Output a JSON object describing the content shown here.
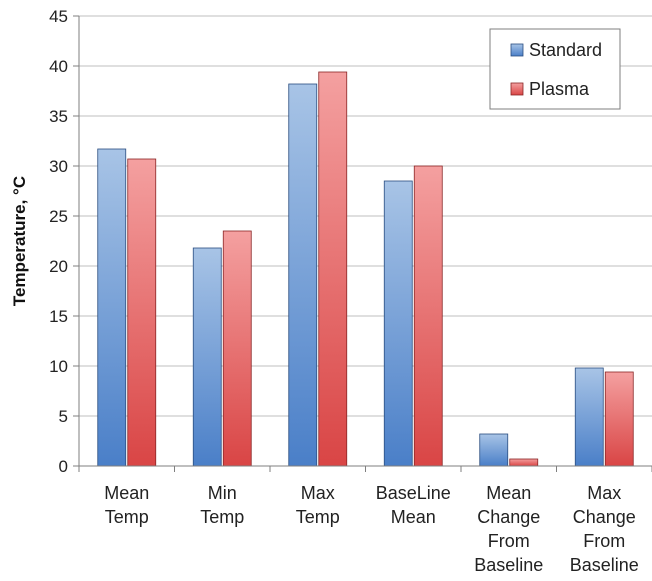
{
  "chart_data": {
    "type": "bar",
    "title": "",
    "xlabel": "",
    "ylabel": "Temperature, °C",
    "ylim": [
      0,
      45
    ],
    "yticks": [
      0,
      5,
      10,
      15,
      20,
      25,
      30,
      35,
      40,
      45
    ],
    "grid": true,
    "legend_position": "top-right",
    "categories": [
      [
        "Mean",
        "Temp"
      ],
      [
        "Min",
        "Temp"
      ],
      [
        "Max",
        "Temp"
      ],
      [
        "BaseLine",
        "Mean"
      ],
      [
        "Mean",
        "Change",
        "From",
        "Baseline"
      ],
      [
        "Max",
        "Change",
        "From",
        "Baseline"
      ]
    ],
    "series": [
      {
        "name": "Standard",
        "color": "#4a7fc8",
        "light": "#a8c4e6",
        "values": [
          31.7,
          21.8,
          38.2,
          28.5,
          3.2,
          9.8
        ]
      },
      {
        "name": "Plasma",
        "color": "#d94545",
        "light": "#f4a0a0",
        "values": [
          30.7,
          23.5,
          39.4,
          30.0,
          0.7,
          9.4
        ]
      }
    ]
  }
}
